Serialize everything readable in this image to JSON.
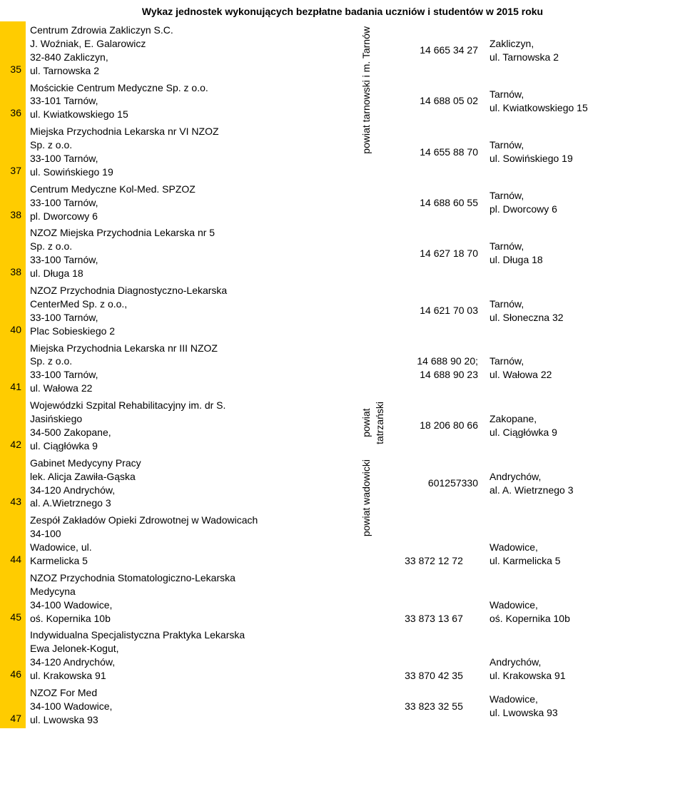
{
  "title": "Wykaz jednostek wykonujących bezpłatne badania uczniów i studentów w 2015 roku",
  "region1_label": "powiat tarnowski i m. Tarnów",
  "region2_label": "powiat\ntatrzański",
  "region3_label": "powiat wadowicki",
  "rows": [
    {
      "idx": "35",
      "name": "Centrum Zdrowia Zakliczyn S.C.\nJ. Woźniak, E. Galarowicz\n32-840 Zakliczyn,\nul. Tarnowska 2",
      "phone": "14 665 34 27",
      "addr": "Zakliczyn,\nul. Tarnowska 2"
    },
    {
      "idx": "36",
      "name": "Mościckie Centrum Medyczne Sp. z o.o.\n33-101 Tarnów,\nul. Kwiatkowskiego 15",
      "phone": "14 688 05 02",
      "addr": "Tarnów,\nul. Kwiatkowskiego 15"
    },
    {
      "idx": "37",
      "name": "Miejska Przychodnia Lekarska nr VI NZOZ\nSp. z o.o.\n33-100 Tarnów,\nul. Sowińskiego 19",
      "phone": "14 655 88 70",
      "addr": "Tarnów,\nul. Sowińskiego 19"
    },
    {
      "idx": "38",
      "name": "Centrum Medyczne Kol-Med. SPZOZ\n33-100 Tarnów,\npl. Dworcowy 6",
      "phone": "14 688 60 55",
      "addr": "Tarnów,\npl. Dworcowy 6"
    },
    {
      "idx": "38",
      "name": "NZOZ Miejska Przychodnia Lekarska nr 5\nSp. z o.o.\n33-100 Tarnów,\nul. Długa 18",
      "phone": "14 627 18 70",
      "addr": "Tarnów,\nul. Długa 18"
    },
    {
      "idx": "40",
      "name": "NZOZ Przychodnia Diagnostyczno-Lekarska\nCenterMed  Sp. z o.o.,\n33-100 Tarnów,\nPlac Sobieskiego 2",
      "phone": "14 621 70 03",
      "addr": "Tarnów,\nul. Słoneczna 32"
    },
    {
      "idx": "41",
      "name": "Miejska Przychodnia Lekarska nr III NZOZ\nSp. z o.o.\n33-100 Tarnów,\nul. Wałowa 22",
      "phone": "14 688 90 20;\n14 688 90 23",
      "addr": "Tarnów,\nul. Wałowa 22"
    },
    {
      "idx": "42",
      "name": "Wojewódzki Szpital Rehabilitacyjny im. dr S.\nJasińskiego\n34-500 Zakopane,\nul. Ciągłówka 9",
      "phone": "18 206 80 66",
      "addr": "Zakopane,\nul. Ciągłówka 9"
    },
    {
      "idx": "43",
      "name": "Gabinet Medycyny Pracy\nlek. Alicja Zawiła-Gąska\n34-120 Andrychów,\nal. A.Wietrznego 3",
      "phone": "601257330",
      "addr": "Andrychów,\nal. A. Wietrznego 3"
    },
    {
      "idx": "44",
      "name": "Zespół Zakładów Opieki Zdrowotnej w Wadowicach\n                                                          34-100\nWadowice,                                                      ul.\nKarmelicka 5",
      "phone": "33 872 12 72",
      "addr": "Wadowice,\nul. Karmelicka 5"
    },
    {
      "idx": "45",
      "name": "NZOZ Przychodnia Stomatologiczno-Lekarska\nMedycyna\n34-100 Wadowice,\noś. Kopernika 10b",
      "phone": "33 873 13 67",
      "addr": "Wadowice,\noś. Kopernika 10b"
    },
    {
      "idx": "46",
      "name": "Indywidualna Specjalistyczna Praktyka Lekarska\nEwa Jelonek-Kogut,\n34-120 Andrychów,\nul. Krakowska 91",
      "phone": "33 870 42 35",
      "addr": "Andrychów,\nul. Krakowska 91"
    },
    {
      "idx": "47",
      "name": "NZOZ For Med\n34-100 Wadowice,\nul. Lwowska 93",
      "phone": "33 823 32 55",
      "addr": "Wadowice,\nul. Lwowska 93"
    }
  ]
}
